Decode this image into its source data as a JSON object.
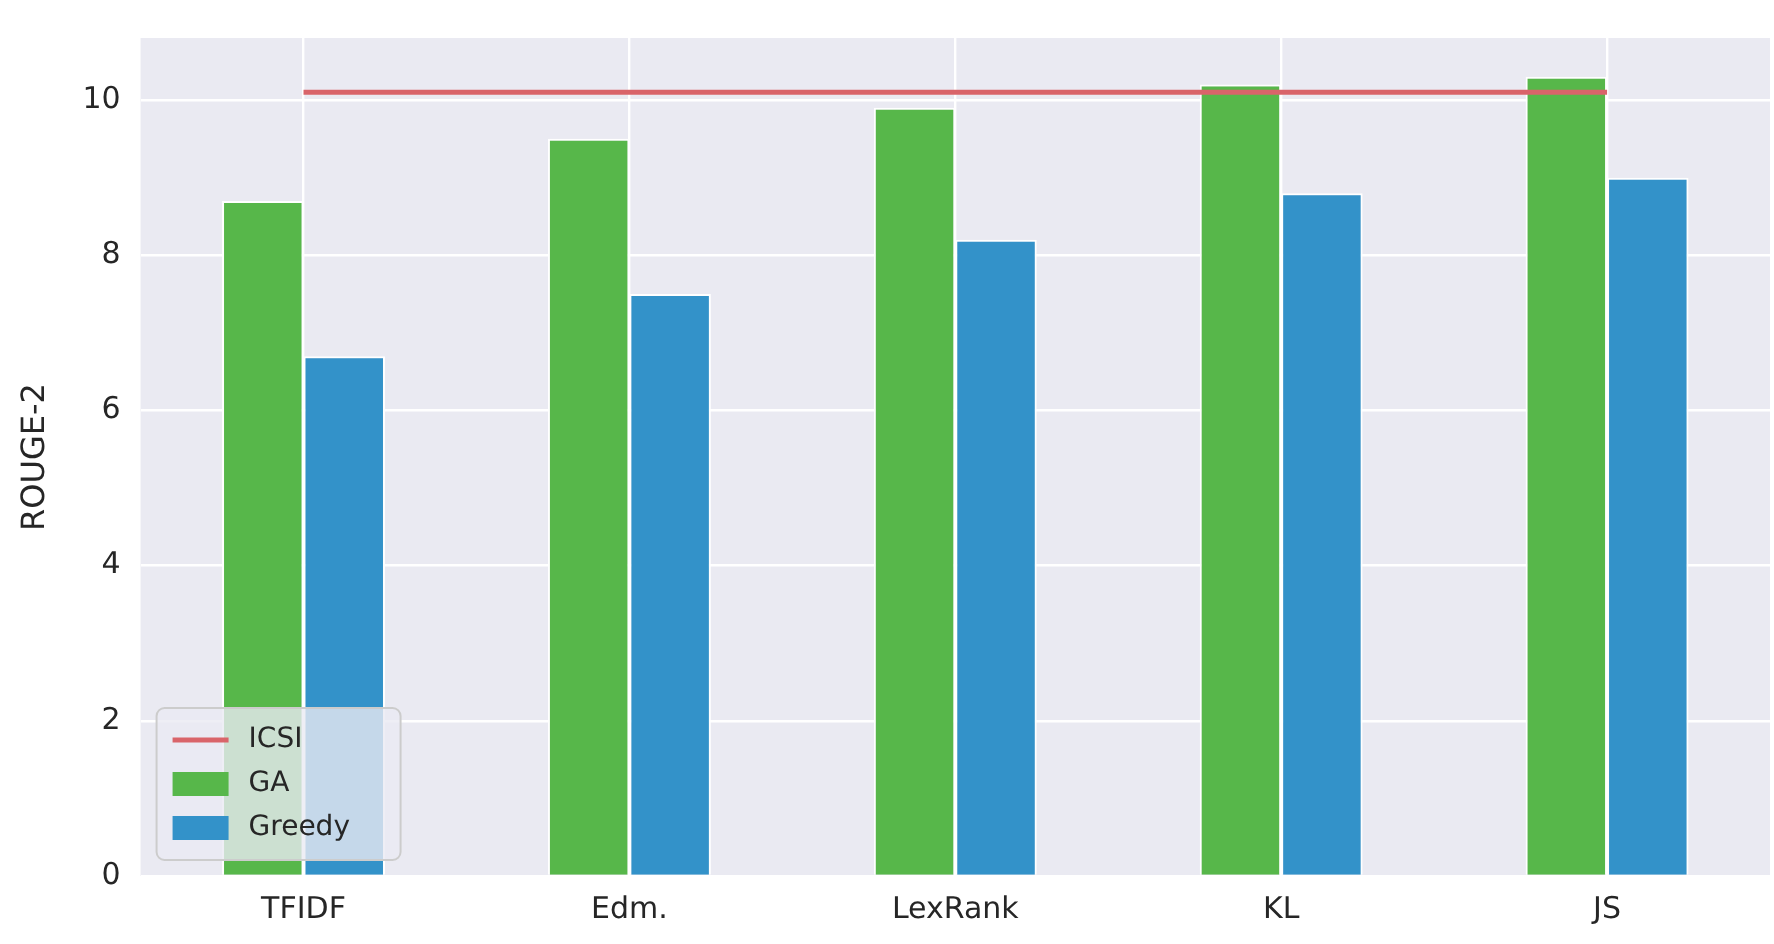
{
  "chart_data": {
    "type": "bar",
    "ylabel": "ROUGE-2",
    "categories": [
      "TFIDF",
      "Edm.",
      "LexRank",
      "KL",
      "JS"
    ],
    "series": [
      {
        "name": "ICSI",
        "type": "line",
        "color": "#d9646a",
        "values": [
          10.1,
          10.1,
          10.1,
          10.1,
          10.1
        ]
      },
      {
        "name": "GA",
        "color": "#57b74a",
        "values": [
          8.7,
          9.5,
          9.9,
          10.2,
          10.3
        ]
      },
      {
        "name": "Greedy",
        "color": "#3392c9",
        "values": [
          6.7,
          7.5,
          8.2,
          8.8,
          9.0
        ]
      }
    ],
    "ylim": [
      0,
      10.8
    ],
    "yticks": [
      0,
      2,
      4,
      6,
      8,
      10
    ],
    "grid": true,
    "legend": "bottom left",
    "marker": "none"
  }
}
